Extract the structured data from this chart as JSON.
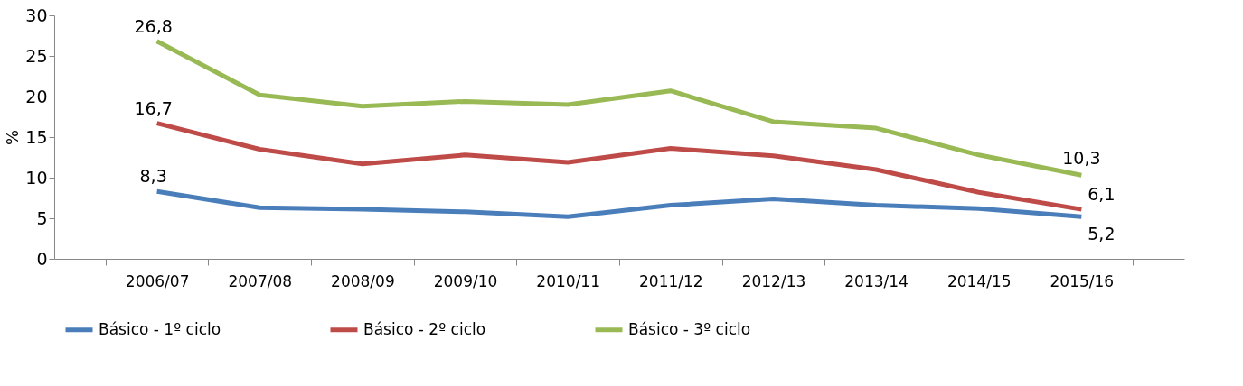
{
  "chart_data": {
    "type": "line",
    "ylabel": "%",
    "categories": [
      "2006/07",
      "2007/08",
      "2008/09",
      "2009/10",
      "2010/11",
      "2011/12",
      "2012/13",
      "2013/14",
      "2014/15",
      "2015/16"
    ],
    "series": [
      {
        "name": "Básico - 1º ciclo",
        "color": "#4a7ebb",
        "values": [
          8.3,
          6.3,
          6.1,
          5.8,
          5.2,
          6.6,
          7.4,
          6.6,
          6.2,
          5.2
        ],
        "value_labels": [
          "8,3",
          null,
          null,
          null,
          null,
          null,
          null,
          null,
          null,
          "5,2"
        ]
      },
      {
        "name": "Básico - 2º ciclo",
        "color": "#be4b48",
        "values": [
          16.7,
          13.5,
          11.7,
          12.8,
          11.9,
          13.6,
          12.7,
          11.0,
          8.2,
          6.1
        ],
        "value_labels": [
          "16,7",
          null,
          null,
          null,
          null,
          null,
          null,
          null,
          null,
          "6,1"
        ]
      },
      {
        "name": "Básico - 3º ciclo",
        "color": "#98b954",
        "values": [
          26.8,
          20.2,
          18.8,
          19.4,
          19.0,
          20.7,
          16.9,
          16.1,
          12.8,
          10.3
        ],
        "value_labels": [
          "26,8",
          null,
          null,
          null,
          null,
          null,
          null,
          null,
          null,
          "10,3"
        ]
      }
    ],
    "ylim": [
      0,
      30
    ],
    "yticks": [
      0,
      5,
      10,
      15,
      20,
      25,
      30
    ],
    "grid": false,
    "legend": "bottom",
    "marker": "none",
    "line_style": "solid"
  }
}
